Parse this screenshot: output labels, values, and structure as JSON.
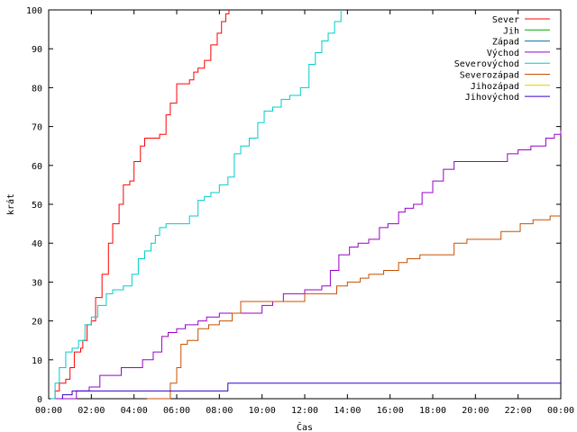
{
  "chart_data": {
    "type": "line",
    "title": "",
    "xlabel": "Čas",
    "ylabel": "krát",
    "xlim": [
      0,
      24
    ],
    "ylim": [
      0,
      100
    ],
    "x_tick_values": [
      0,
      2,
      4,
      6,
      8,
      10,
      12,
      14,
      16,
      18,
      20,
      22,
      24
    ],
    "x_tick_labels": [
      "00:00",
      "02:00",
      "04:00",
      "06:00",
      "08:00",
      "10:00",
      "12:00",
      "14:00",
      "16:00",
      "18:00",
      "20:00",
      "22:00",
      "00:00"
    ],
    "y_ticks": [
      0,
      10,
      20,
      30,
      40,
      50,
      60,
      70,
      80,
      90,
      100
    ],
    "grid": false,
    "legend_position": "top-right",
    "series": [
      {
        "name": "Sever",
        "color": "#ff0000",
        "x": [
          0.15,
          0.3,
          0.5,
          0.8,
          1.0,
          1.2,
          1.5,
          1.6,
          1.8,
          2.0,
          2.2,
          2.5,
          2.8,
          3.0,
          3.3,
          3.5,
          3.8,
          4.0,
          4.3,
          4.5,
          4.7,
          4.9,
          5.2,
          5.5,
          5.7,
          6.0,
          6.3,
          6.6,
          6.8,
          7.0,
          7.3,
          7.6,
          7.9,
          8.1,
          8.3,
          8.45
        ],
        "y": [
          0,
          2,
          4,
          5,
          8,
          12,
          13,
          15,
          19,
          20,
          26,
          32,
          40,
          45,
          50,
          55,
          56,
          61,
          65,
          67,
          67,
          67,
          68,
          73,
          76,
          81,
          81,
          82,
          84,
          85,
          87,
          91,
          94,
          97,
          99,
          100
        ]
      },
      {
        "name": "Jih",
        "color": "#00aa00",
        "x": [],
        "y": []
      },
      {
        "name": "Západ",
        "color": "#0070a0",
        "x": [],
        "y": []
      },
      {
        "name": "Východ",
        "color": "#9900cc",
        "x": [
          0.3,
          1.3,
          1.9,
          2.4,
          3.4,
          4.4,
          4.9,
          5.3,
          5.6,
          6.0,
          6.4,
          7.0,
          7.4,
          8.0,
          8.6,
          9.4,
          10.0,
          10.5,
          11.0,
          12.0,
          12.8,
          13.2,
          13.6,
          14.1,
          14.5,
          15.0,
          15.5,
          15.9,
          16.4,
          16.7,
          17.1,
          17.5,
          18.0,
          18.5,
          19.0,
          19.6,
          20.3,
          20.9,
          21.5,
          22.0,
          22.6,
          23.3,
          23.7,
          24.0
        ],
        "y": [
          0,
          2,
          3,
          6,
          8,
          10,
          12,
          16,
          17,
          18,
          19,
          20,
          21,
          22,
          22,
          22,
          24,
          25,
          27,
          28,
          29,
          33,
          37,
          39,
          40,
          41,
          44,
          45,
          48,
          49,
          50,
          53,
          56,
          59,
          61,
          61,
          61,
          61,
          63,
          64,
          65,
          67,
          68,
          69
        ]
      },
      {
        "name": "Severovýchod",
        "color": "#00cccc",
        "x": [
          0.1,
          0.3,
          0.5,
          0.8,
          1.1,
          1.4,
          1.7,
          2.0,
          2.3,
          2.7,
          3.0,
          3.5,
          3.9,
          4.2,
          4.5,
          4.8,
          5.0,
          5.2,
          5.5,
          5.8,
          6.4,
          6.6,
          7.0,
          7.3,
          7.6,
          8.0,
          8.4,
          8.7,
          9.0,
          9.4,
          9.8,
          10.1,
          10.5,
          10.9,
          11.3,
          11.8,
          12.2,
          12.5,
          12.8,
          13.1,
          13.4,
          13.7
        ],
        "y": [
          0,
          4,
          8,
          12,
          13,
          15,
          19,
          21,
          24,
          27,
          28,
          29,
          32,
          36,
          38,
          40,
          42,
          44,
          45,
          45,
          45,
          47,
          51,
          52,
          53,
          55,
          57,
          63,
          65,
          67,
          71,
          74,
          75,
          77,
          78,
          80,
          86,
          89,
          92,
          94,
          97,
          100
        ]
      },
      {
        "name": "Severozápad",
        "color": "#c85000",
        "x": [
          4.6,
          5.7,
          6.0,
          6.2,
          6.5,
          7.0,
          7.5,
          8.0,
          8.6,
          9.0,
          9.8,
          10.7,
          11.0,
          12.0,
          12.7,
          13.5,
          14.0,
          14.6,
          15.0,
          15.7,
          16.4,
          16.8,
          17.4,
          18.0,
          18.5,
          19.0,
          19.6,
          20.5,
          21.2,
          22.1,
          22.7,
          23.0,
          23.5,
          24.0
        ],
        "y": [
          0,
          4,
          8,
          14,
          15,
          18,
          19,
          20,
          22,
          25,
          25,
          25,
          25,
          27,
          27,
          29,
          30,
          31,
          32,
          33,
          35,
          36,
          37,
          37,
          37,
          40,
          41,
          41,
          43,
          45,
          46,
          46,
          47,
          47
        ]
      },
      {
        "name": "Jihozápad",
        "color": "#e0d000",
        "x": [],
        "y": []
      },
      {
        "name": "Jihovýchod",
        "color": "#3300cc",
        "x": [
          0.6,
          0.65,
          1.1,
          8.2,
          8.4,
          24.0
        ],
        "y": [
          0,
          1,
          2,
          2,
          4,
          4
        ]
      }
    ]
  }
}
